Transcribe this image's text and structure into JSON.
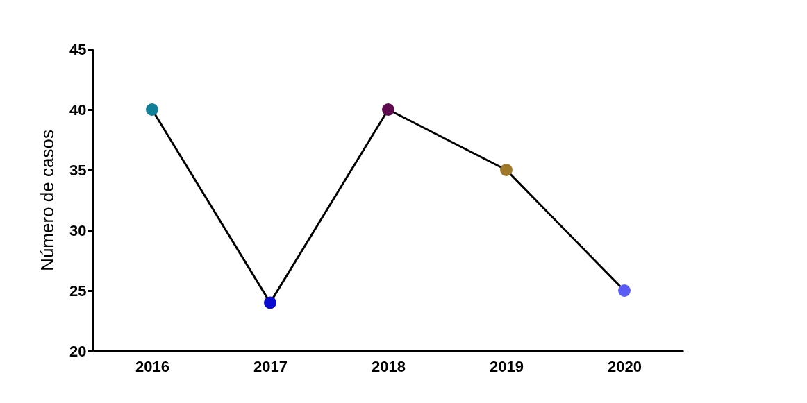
{
  "chart_data": {
    "type": "line",
    "ylabel": "Número de casos",
    "categories": [
      "2016",
      "2017",
      "2018",
      "2019",
      "2020"
    ],
    "series": [
      {
        "color": "#000000",
        "values": [
          40,
          24,
          40,
          35,
          25
        ]
      }
    ],
    "colors": [
      "#0e7f96",
      "#0a0ad0",
      "#5e0a4e",
      "#a0782a",
      "#5a5af5"
    ],
    "ylim": [
      20,
      45
    ],
    "yticks": [
      20,
      25,
      30,
      35,
      40,
      45
    ],
    "grid": false,
    "marker": "circle",
    "line_style": "solid"
  }
}
